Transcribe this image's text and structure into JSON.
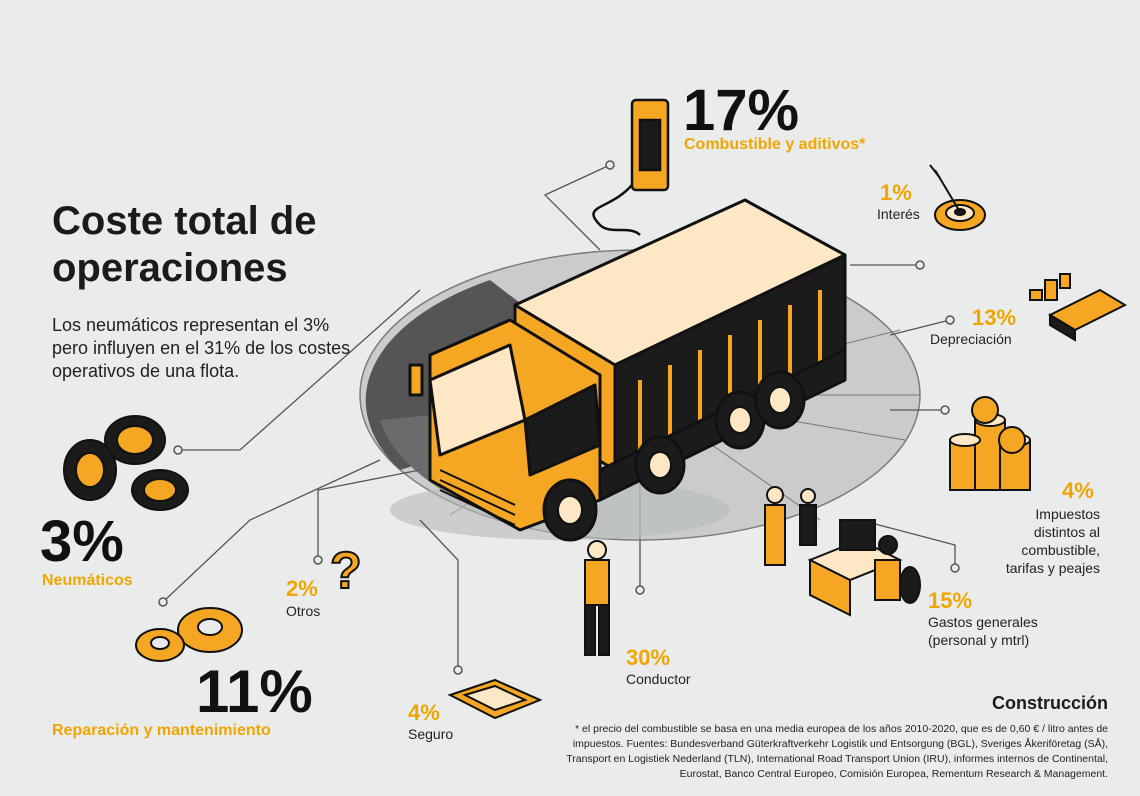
{
  "title": "Coste total de operaciones",
  "intro": "Los neumáticos representan el 3% pero influyen en el 31% de los costes operativos de una flota.",
  "sector": "Construcción",
  "footnote": "* el precio del combustible se basa en una media europea de los años 2010-2020, que es de 0,60 € / litro antes de impuestos. Fuentes: Bundesverband Güterkraftverkehr Logistik und Entsorgung (BGL), Sveriges Åkeriföretag (SÅ), Transport en Logistiek Nederland (TLN), International Road Transport Union (IRU), informes internos de Continental, Eurostat, Banco Central Europeo, Comisión Europea, Rementum Research & Management.",
  "costs": {
    "fuel": {
      "pct": "17%",
      "label": "Combustible y aditivos*",
      "value": 17
    },
    "interest": {
      "pct": "1%",
      "label": "Interés",
      "value": 1
    },
    "depreciation": {
      "pct": "13%",
      "label": "Depreciación",
      "value": 13
    },
    "taxes": {
      "pct": "4%",
      "label": "Impuestos distintos al combustible, tarifas y peajes",
      "value": 4
    },
    "overheads": {
      "pct": "15%",
      "label": "Gastos generales (personal y mtrl)",
      "value": 15
    },
    "driver": {
      "pct": "30%",
      "label": "Conductor",
      "value": 30
    },
    "insurance": {
      "pct": "4%",
      "label": "Seguro",
      "value": 4
    },
    "other": {
      "pct": "2%",
      "label": "Otros",
      "value": 2
    },
    "tyres": {
      "pct": "3%",
      "label": "Neumáticos",
      "value": 3
    },
    "repair": {
      "pct": "11%",
      "label": "Reparación y mantenimiento",
      "value": 11
    }
  },
  "colors": {
    "accent": "#f5a623",
    "dark": "#1b1b1b",
    "background": "#e9eceb",
    "pie_grey": "#c9cccb"
  }
}
